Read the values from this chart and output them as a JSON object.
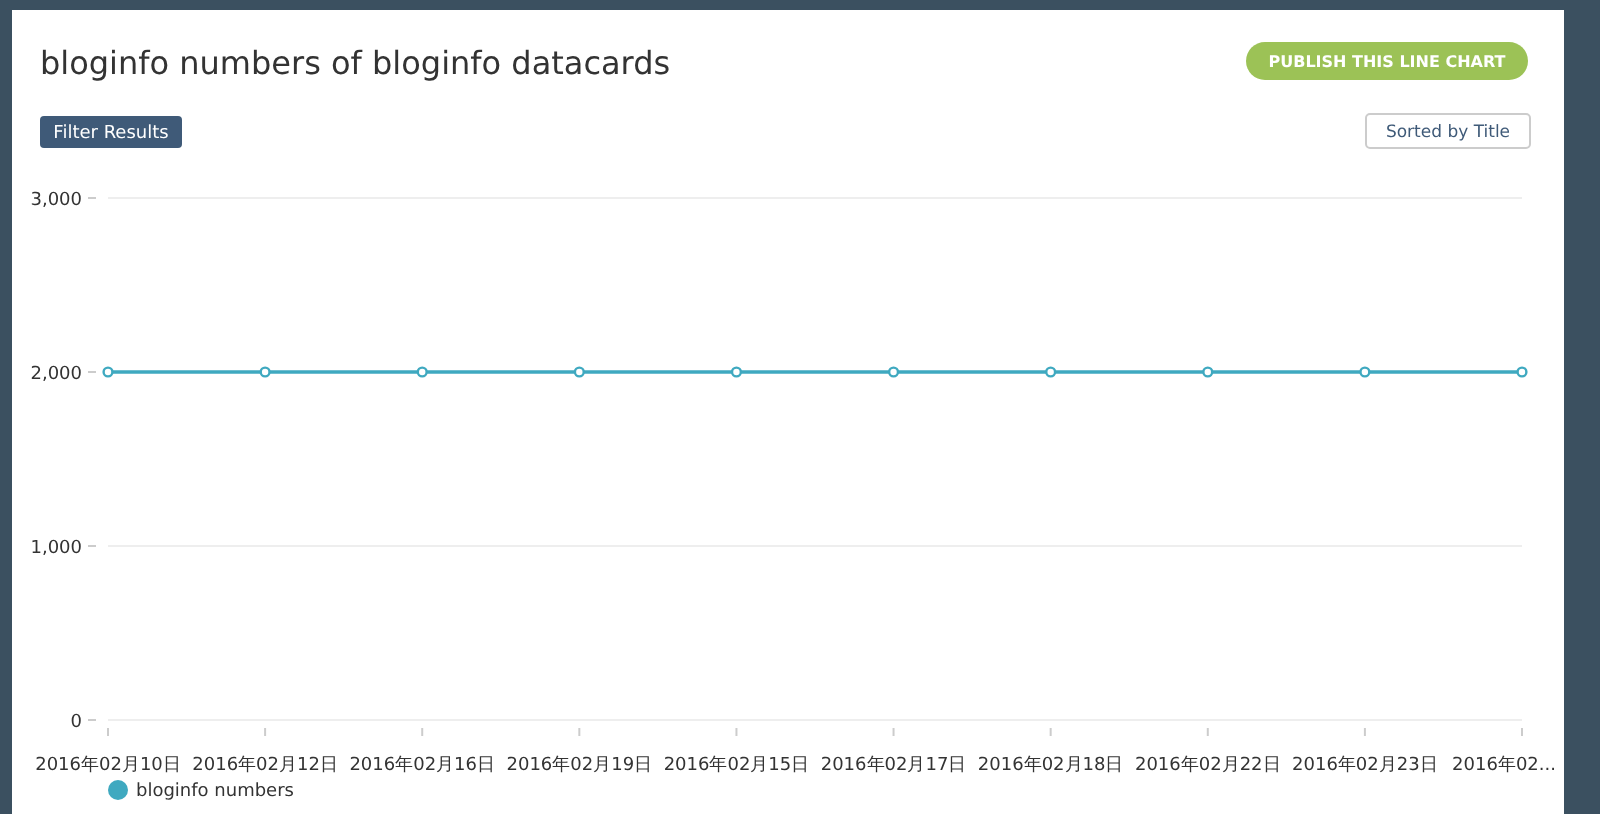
{
  "chart_data": {
    "type": "line",
    "title": "bloginfo numbers of bloginfo datacards",
    "annotations": [
      "PUBLISH THIS LINE CHART",
      "Filter Results",
      "Sorted by Title"
    ],
    "categories": [
      "2016年02月10日",
      "2016年02月12日",
      "2016年02月16日",
      "2016年02月19日",
      "2016年02月15日",
      "2016年02月17日",
      "2016年02月18日",
      "2016年02月22日",
      "2016年02月23日",
      "2016年02..."
    ],
    "series": [
      {
        "name": "bloginfo numbers",
        "color": "#3fa9c0",
        "values": [
          2000,
          2000,
          2000,
          2000,
          2000,
          2000,
          2000,
          2000,
          2000,
          2000
        ]
      }
    ],
    "ylim": [
      0,
      3000
    ],
    "yticks": [
      {
        "value": 0,
        "label": "0"
      },
      {
        "value": 1000,
        "label": "1,000"
      },
      {
        "value": 2000,
        "label": "2,000"
      },
      {
        "value": 3000,
        "label": "3,000"
      }
    ],
    "grid": "y",
    "legend": "bottom",
    "marker": "circle",
    "line_style": "solid"
  }
}
